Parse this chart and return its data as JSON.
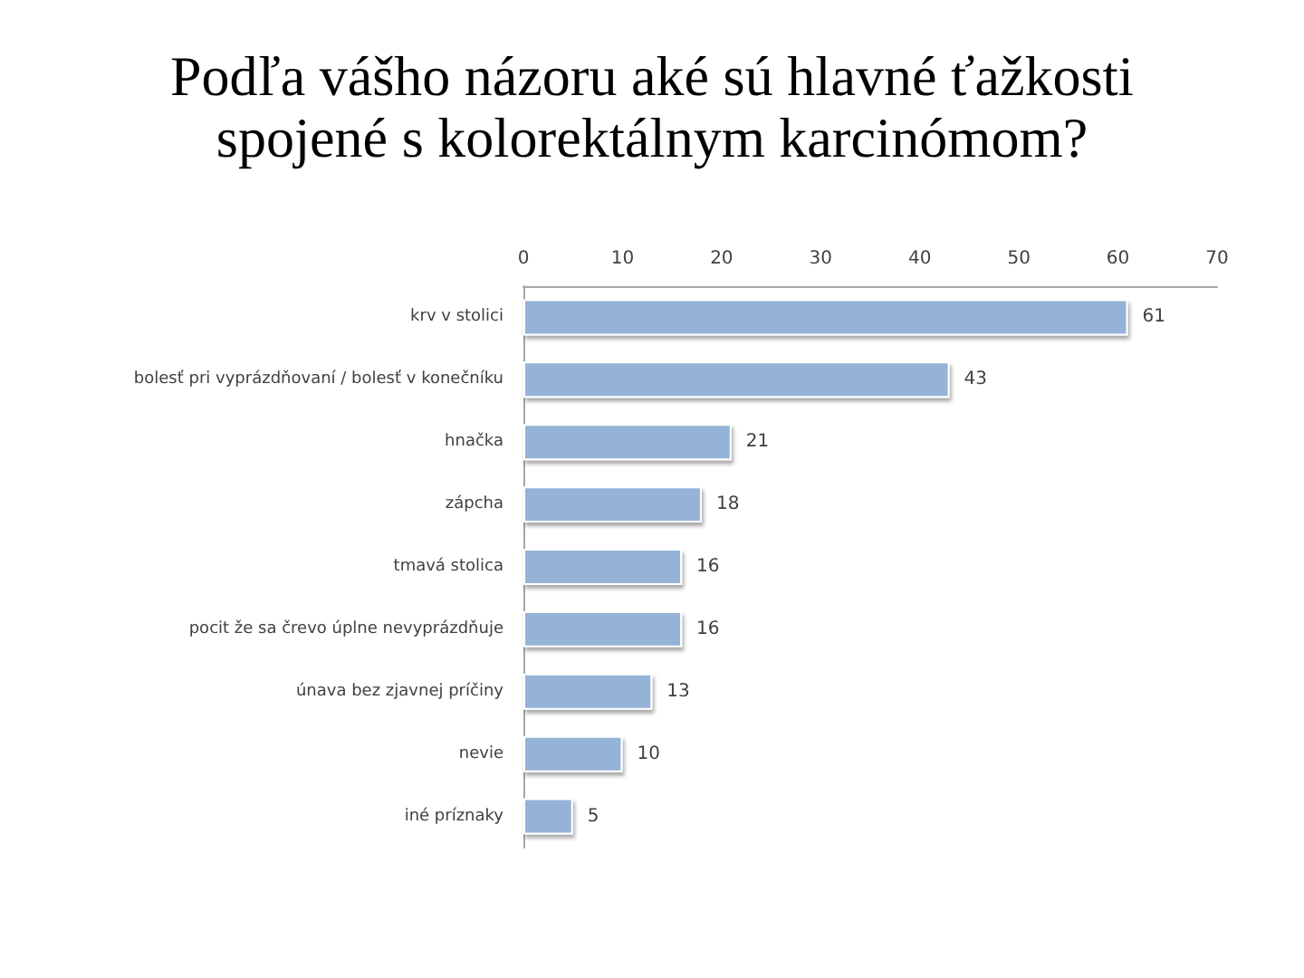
{
  "chart_data": {
    "type": "bar",
    "orientation": "horizontal",
    "title": "Podľa vášho názoru aké sú hlavné ťažkosti\nspojené s kolorektálnym karcinómom?",
    "categories": [
      "krv v stolici",
      "bolesť pri vyprázdňovaní / bolesť v konečníku",
      "hnačka",
      "zápcha",
      "tmavá stolica",
      "pocit že sa črevo úplne nevyprázdňuje",
      "únava bez zjavnej príčiny",
      "nevie",
      "iné príznaky"
    ],
    "values": [
      61,
      43,
      21,
      18,
      16,
      16,
      13,
      10,
      5
    ],
    "color": "#95b3d7",
    "xlim": [
      0,
      70
    ],
    "xticks": [
      0,
      10,
      20,
      30,
      40,
      50,
      60,
      70
    ],
    "data_labels": true
  }
}
